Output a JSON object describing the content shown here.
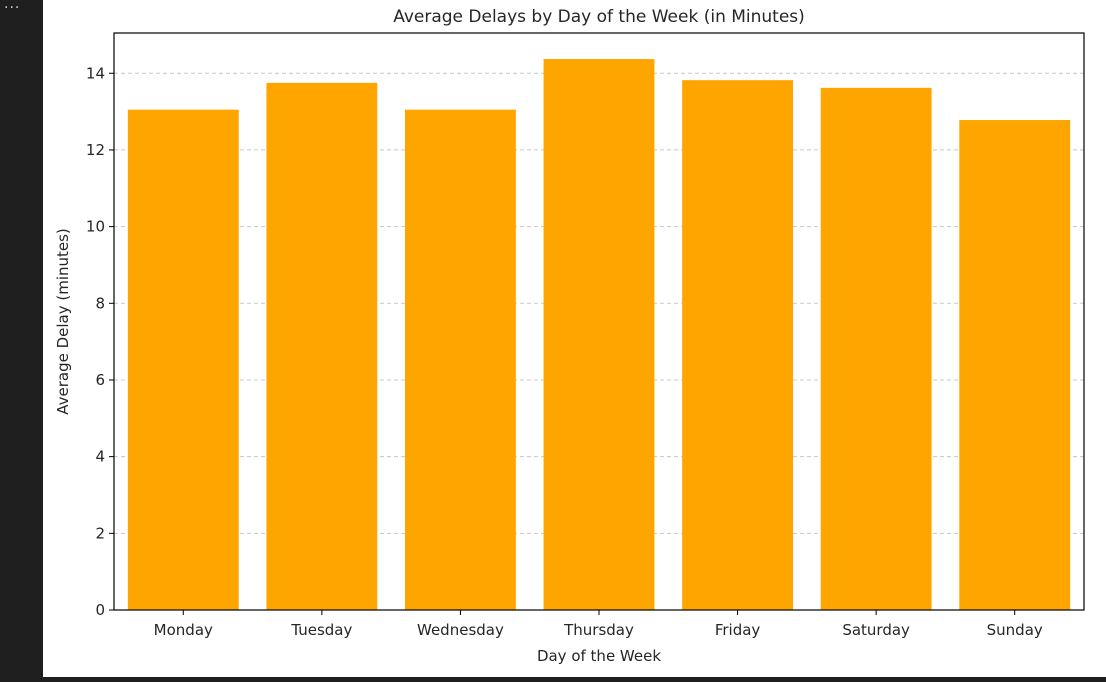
{
  "output_indicator": "...",
  "chart_data": {
    "type": "bar",
    "title": "Average Delays by Day of the Week (in Minutes)",
    "xlabel": "Day of the Week",
    "ylabel": "Average Delay (minutes)",
    "categories": [
      "Monday",
      "Tuesday",
      "Wednesday",
      "Thursday",
      "Friday",
      "Saturday",
      "Sunday"
    ],
    "values": [
      13.05,
      13.75,
      13.05,
      14.37,
      13.82,
      13.62,
      12.78
    ],
    "ylim": [
      0,
      15.05
    ],
    "yticks": [
      0,
      2,
      4,
      6,
      8,
      10,
      12,
      14
    ],
    "grid": "y-dashed",
    "colors": {
      "bar": "#FFA500",
      "grid": "#c8c8c8",
      "axis": "#000000",
      "background": "#ffffff",
      "page": "#1f1f1f"
    }
  }
}
